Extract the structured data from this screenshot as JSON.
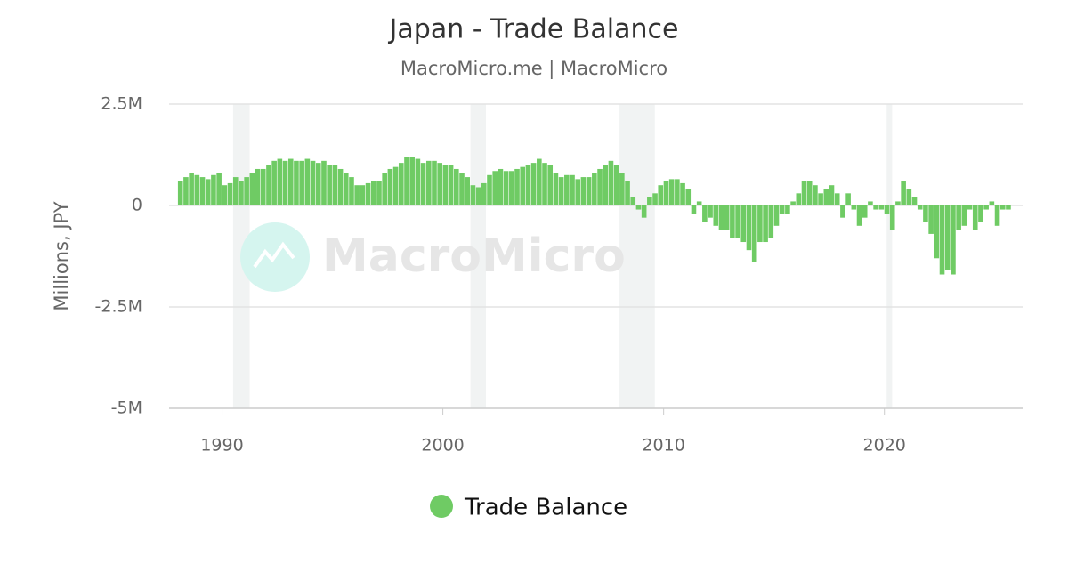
{
  "chart_data": {
    "type": "bar",
    "title": "Japan - Trade Balance",
    "subtitle": "MacroMicro.me | MacroMicro",
    "y_label": "Millions, JPY",
    "watermark": "MacroMicro",
    "series": [
      {
        "name": "Trade Balance",
        "color": "#6fcb64",
        "x": [
          1988,
          1988.25,
          1988.5,
          1988.75,
          1989,
          1989.25,
          1989.5,
          1989.75,
          1990,
          1990.25,
          1990.5,
          1990.75,
          1991,
          1991.25,
          1991.5,
          1991.75,
          1992,
          1992.25,
          1992.5,
          1992.75,
          1993,
          1993.25,
          1993.5,
          1993.75,
          1994,
          1994.25,
          1994.5,
          1994.75,
          1995,
          1995.25,
          1995.5,
          1995.75,
          1996,
          1996.25,
          1996.5,
          1996.75,
          1997,
          1997.25,
          1997.5,
          1997.75,
          1998,
          1998.25,
          1998.5,
          1998.75,
          1999,
          1999.25,
          1999.5,
          1999.75,
          2000,
          2000.25,
          2000.5,
          2000.75,
          2001,
          2001.25,
          2001.5,
          2001.75,
          2002,
          2002.25,
          2002.5,
          2002.75,
          2003,
          2003.25,
          2003.5,
          2003.75,
          2004,
          2004.25,
          2004.5,
          2004.75,
          2005,
          2005.25,
          2005.5,
          2005.75,
          2006,
          2006.25,
          2006.5,
          2006.75,
          2007,
          2007.25,
          2007.5,
          2007.75,
          2008,
          2008.25,
          2008.5,
          2008.75,
          2009,
          2009.25,
          2009.5,
          2009.75,
          2010,
          2010.25,
          2010.5,
          2010.75,
          2011,
          2011.25,
          2011.5,
          2011.75,
          2012,
          2012.25,
          2012.5,
          2012.75,
          2013,
          2013.25,
          2013.5,
          2013.75,
          2014,
          2014.25,
          2014.5,
          2014.75,
          2015,
          2015.25,
          2015.5,
          2015.75,
          2016,
          2016.25,
          2016.5,
          2016.75,
          2017,
          2017.25,
          2017.5,
          2017.75,
          2018,
          2018.25,
          2018.5,
          2018.75,
          2019,
          2019.25,
          2019.5,
          2019.75,
          2020,
          2020.25,
          2020.5,
          2020.75,
          2021,
          2021.25,
          2021.5,
          2021.75,
          2022,
          2022.25,
          2022.5,
          2022.75,
          2023,
          2023.25,
          2023.5,
          2023.75,
          2024,
          2024.25,
          2024.5,
          2024.75,
          2025,
          2025.25,
          2025.5
        ],
        "values": [
          600000,
          700000,
          800000,
          750000,
          700000,
          650000,
          750000,
          800000,
          500000,
          550000,
          700000,
          600000,
          700000,
          800000,
          900000,
          900000,
          1000000,
          1100000,
          1150000,
          1100000,
          1150000,
          1100000,
          1100000,
          1150000,
          1100000,
          1050000,
          1100000,
          1000000,
          1000000,
          900000,
          800000,
          700000,
          500000,
          500000,
          550000,
          600000,
          600000,
          800000,
          900000,
          950000,
          1050000,
          1200000,
          1200000,
          1150000,
          1050000,
          1100000,
          1100000,
          1050000,
          1000000,
          1000000,
          900000,
          800000,
          700000,
          500000,
          450000,
          550000,
          750000,
          850000,
          900000,
          850000,
          850000,
          900000,
          950000,
          1000000,
          1050000,
          1150000,
          1050000,
          1000000,
          800000,
          700000,
          750000,
          750000,
          650000,
          700000,
          700000,
          800000,
          900000,
          1000000,
          1100000,
          1000000,
          800000,
          600000,
          200000,
          -100000,
          -300000,
          200000,
          300000,
          500000,
          600000,
          650000,
          650000,
          550000,
          400000,
          -200000,
          100000,
          -400000,
          -300000,
          -500000,
          -600000,
          -600000,
          -800000,
          -800000,
          -900000,
          -1100000,
          -1400000,
          -900000,
          -900000,
          -800000,
          -500000,
          -200000,
          -200000,
          100000,
          300000,
          600000,
          600000,
          500000,
          300000,
          400000,
          500000,
          300000,
          -300000,
          300000,
          -100000,
          -500000,
          -300000,
          100000,
          -100000,
          -100000,
          -200000,
          -600000,
          100000,
          600000,
          400000,
          200000,
          -100000,
          -400000,
          -700000,
          -1300000,
          -1700000,
          -1600000,
          -1700000,
          -600000,
          -500000,
          -100000,
          -600000,
          -400000,
          -100000,
          100000,
          -500000,
          -100000,
          -100000
        ]
      }
    ],
    "recessions": [
      [
        1990.5,
        1991.25
      ],
      [
        2001.25,
        2001.95
      ],
      [
        2008,
        2009.6
      ],
      [
        2020.1,
        2020.35
      ]
    ],
    "xlim": [
      1987.6,
      2026.3
    ],
    "xticks": [
      1990,
      2000,
      2010,
      2020
    ],
    "ylim": [
      -5000000,
      2500000
    ],
    "yticks": [
      {
        "value": -5000000,
        "label": "-5M"
      },
      {
        "value": -2500000,
        "label": "-2.5M"
      },
      0,
      {
        "value": 2500000,
        "label": "2.5M"
      }
    ],
    "grid": true
  }
}
